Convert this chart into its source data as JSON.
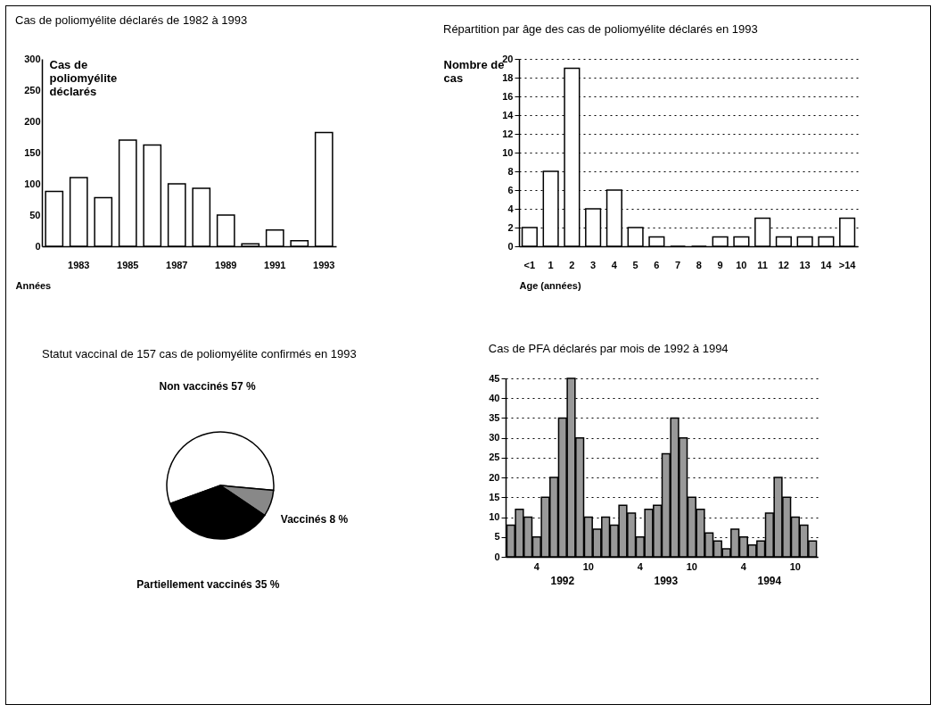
{
  "chart_data": [
    {
      "type": "bar",
      "title": "Cas de poliomyélite déclarés de 1982 à 1993",
      "ylabel": "Cas de poliomyélite déclarés",
      "xlabel": "Années",
      "categories": [
        null,
        "1983",
        null,
        "1985",
        null,
        "1987",
        null,
        "1989",
        null,
        "1991",
        null,
        "1993"
      ],
      "values": [
        88,
        110,
        78,
        170,
        162,
        100,
        93,
        50,
        4,
        26,
        9,
        182
      ],
      "color": "#ffffff",
      "ylim": [
        0,
        300
      ],
      "yticks": [
        0,
        50,
        100,
        150,
        200,
        250,
        300
      ],
      "grid": false
    },
    {
      "type": "bar",
      "title": "Répartition par âge des cas de poliomyélite déclarés en 1993",
      "ylabel": "Nombre de cas",
      "xlabel": "Age (années)",
      "categories": [
        "<1",
        "1",
        "2",
        "3",
        "4",
        "5",
        "6",
        "7",
        "8",
        "9",
        "10",
        "11",
        "12",
        "13",
        "14",
        ">14"
      ],
      "values": [
        2,
        8,
        19,
        4,
        6,
        2,
        1,
        0,
        0,
        1,
        1,
        3,
        1,
        1,
        1,
        3
      ],
      "color": "#ffffff",
      "ylim": [
        0,
        20
      ],
      "yticks": [
        0,
        2,
        4,
        6,
        8,
        10,
        12,
        14,
        16,
        18,
        20
      ],
      "grid": "y"
    },
    {
      "type": "pie",
      "title": "Statut vaccinal de 157 cas de poliomyélite confirmés en 1993",
      "categories": [
        "Non vaccinés",
        "Vaccinés",
        "Partiellement vaccinés"
      ],
      "values": [
        57,
        8,
        35
      ],
      "colors": [
        "#ffffff",
        "#888888",
        "#000000"
      ],
      "value_labels": [
        "57 %",
        "8 %",
        "35 %"
      ],
      "legend": false
    },
    {
      "type": "bar",
      "title": "Cas de PFA déclarés par mois de 1992 à 1994",
      "categories": [
        null,
        null,
        null,
        "4",
        null,
        null,
        null,
        null,
        null,
        "10",
        null,
        null,
        null,
        null,
        null,
        "4",
        null,
        null,
        null,
        null,
        null,
        "10",
        null,
        null,
        null,
        null,
        null,
        "4",
        null,
        null,
        null,
        null,
        null,
        "10",
        null,
        null
      ],
      "values": [
        8,
        12,
        10,
        5,
        15,
        20,
        35,
        45,
        30,
        10,
        7,
        10,
        8,
        13,
        11,
        5,
        12,
        13,
        26,
        35,
        30,
        15,
        12,
        6,
        4,
        2,
        7,
        5,
        3,
        4,
        11,
        20,
        15,
        10,
        8,
        4
      ],
      "color": "#999999",
      "ylim": [
        0,
        45
      ],
      "yticks": [
        0,
        5,
        10,
        15,
        20,
        25,
        30,
        35,
        40,
        45
      ],
      "grid": "y",
      "annotations": [
        "1992",
        "1993",
        "1994"
      ]
    }
  ]
}
